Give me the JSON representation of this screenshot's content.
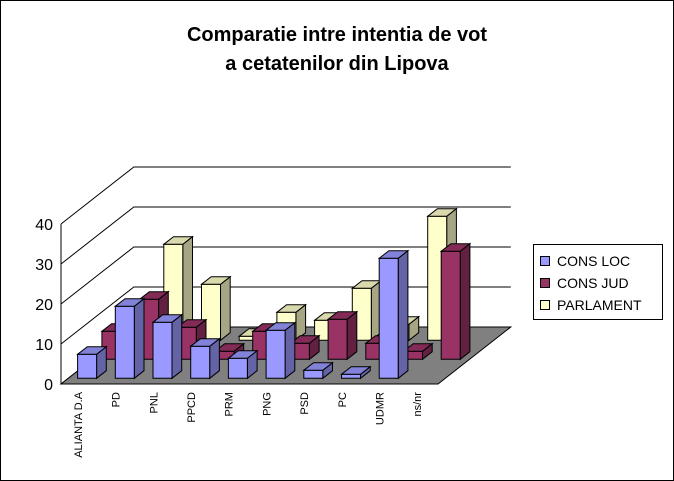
{
  "chart_data": {
    "type": "bar",
    "title_lines": [
      "Comparatie intre intentia de vot",
      "a cetatenilor din Lipova"
    ],
    "categories": [
      "ALIANTA D.A",
      "PD",
      "PNL",
      "PPCD",
      "PRM",
      "PNG",
      "PSD",
      "PC",
      "UDMR",
      "ns/nr"
    ],
    "series": [
      {
        "name": "CONS LOC",
        "color": "#9999ff",
        "values": [
          6,
          18,
          14,
          8,
          5,
          12,
          2,
          1,
          30,
          0
        ]
      },
      {
        "name": "CONS JUD",
        "color": "#993366",
        "values": [
          7,
          15,
          8,
          2,
          7,
          4,
          10,
          4,
          2,
          27
        ]
      },
      {
        "name": "PARLAMENT",
        "color": "#ffffcc",
        "values": [
          6,
          24,
          14,
          1,
          7,
          5,
          13,
          4,
          31,
          0
        ]
      }
    ],
    "yticks": [
      0,
      10,
      20,
      30,
      40
    ],
    "ylim": [
      0,
      40
    ],
    "grid": true,
    "legend_position": "right",
    "wall_color": "#ffffff",
    "floor_color": "#808080"
  }
}
